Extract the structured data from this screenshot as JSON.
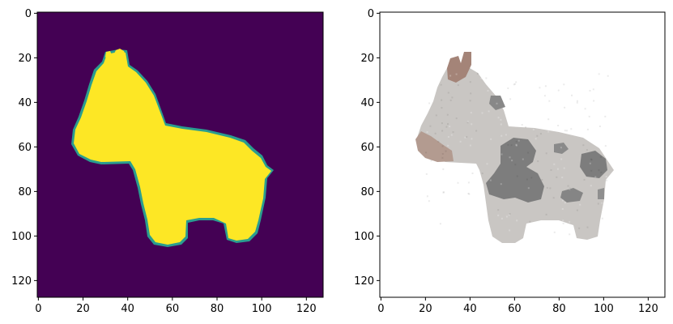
{
  "chart_data": [
    {
      "type": "image",
      "colormap": "viridis",
      "image_shape": [
        128,
        128
      ],
      "xlim": [
        -0.5,
        127.5
      ],
      "ylim": [
        127.5,
        -0.5
      ],
      "xticks": [
        0,
        20,
        40,
        60,
        80,
        100,
        120
      ],
      "yticks": [
        0,
        20,
        40,
        60,
        80,
        100,
        120
      ],
      "xticklabels": [
        "0",
        "20",
        "40",
        "60",
        "80",
        "100",
        "120"
      ],
      "yticklabels": [
        "0",
        "20",
        "40",
        "60",
        "80",
        "100",
        "120"
      ],
      "background_color": "#440154",
      "foreground_color": "#fde725",
      "edge_color": "#2a9d8f"
    },
    {
      "type": "image",
      "image_shape": [
        128,
        128
      ],
      "xlim": [
        -0.5,
        127.5
      ],
      "ylim": [
        127.5,
        -0.5
      ],
      "xticks": [
        0,
        20,
        40,
        60,
        80,
        100,
        120
      ],
      "yticks": [
        0,
        20,
        40,
        60,
        80,
        100,
        120
      ],
      "xticklabels": [
        "0",
        "20",
        "40",
        "60",
        "80",
        "100",
        "120"
      ],
      "yticklabels": [
        "0",
        "20",
        "40",
        "60",
        "80",
        "100",
        "120"
      ],
      "background_color": "#ffffff",
      "body_color": "#c9c6c3",
      "spot_color": "#7d7d7d",
      "muzzle_color": "#b39b90",
      "ear_color": "#a48478"
    }
  ]
}
